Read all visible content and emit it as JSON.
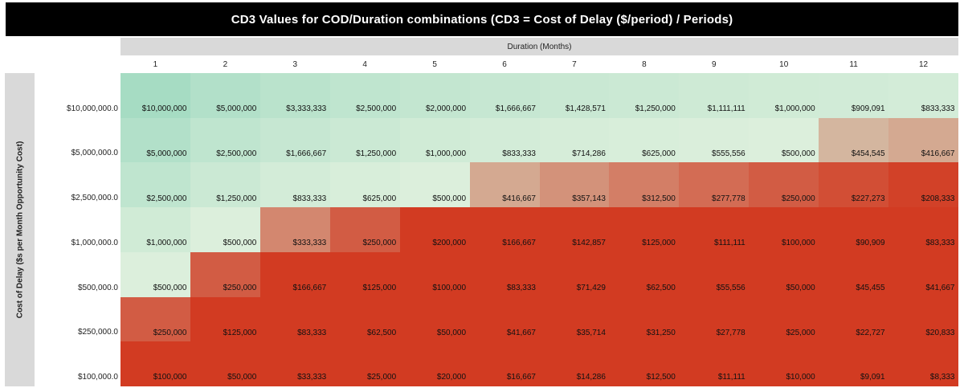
{
  "chart_data": {
    "type": "heatmap",
    "title": "CD3 Values for COD/Duration combinations (CD3 = Cost of Delay ($/period) / Periods)",
    "xlabel": "Duration (Months)",
    "ylabel": "Cost of Delay ($s per Month Opportunity Cost)",
    "columns": [
      "1",
      "2",
      "3",
      "4",
      "5",
      "6",
      "7",
      "8",
      "9",
      "10",
      "11",
      "12"
    ],
    "rows": [
      {
        "label": "$10,000,000.0",
        "cells": [
          "$10,000,000",
          "$5,000,000",
          "$3,333,333",
          "$2,500,000",
          "$2,000,000",
          "$1,666,667",
          "$1,428,571",
          "$1,250,000",
          "$1,111,111",
          "$1,000,000",
          "$909,091",
          "$833,333"
        ],
        "values": [
          10000000,
          5000000,
          3333333,
          2500000,
          2000000,
          1666667,
          1428571,
          1250000,
          1111111,
          1000000,
          909091,
          833333
        ]
      },
      {
        "label": "$5,000,000.0",
        "cells": [
          "$5,000,000",
          "$2,500,000",
          "$1,666,667",
          "$1,250,000",
          "$1,000,000",
          "$833,333",
          "$714,286",
          "$625,000",
          "$555,556",
          "$500,000",
          "$454,545",
          "$416,667"
        ],
        "values": [
          5000000,
          2500000,
          1666667,
          1250000,
          1000000,
          833333,
          714286,
          625000,
          555556,
          500000,
          454545,
          416667
        ]
      },
      {
        "label": "$2,500,000.0",
        "cells": [
          "$2,500,000",
          "$1,250,000",
          "$833,333",
          "$625,000",
          "$500,000",
          "$416,667",
          "$357,143",
          "$312,500",
          "$277,778",
          "$250,000",
          "$227,273",
          "$208,333"
        ],
        "values": [
          2500000,
          1250000,
          833333,
          625000,
          500000,
          416667,
          357143,
          312500,
          277778,
          250000,
          227273,
          208333
        ]
      },
      {
        "label": "$1,000,000.0",
        "cells": [
          "$1,000,000",
          "$500,000",
          "$333,333",
          "$250,000",
          "$200,000",
          "$166,667",
          "$142,857",
          "$125,000",
          "$111,111",
          "$100,000",
          "$90,909",
          "$83,333"
        ],
        "values": [
          1000000,
          500000,
          333333,
          250000,
          200000,
          166667,
          142857,
          125000,
          111111,
          100000,
          90909,
          83333
        ]
      },
      {
        "label": "$500,000.0",
        "cells": [
          "$500,000",
          "$250,000",
          "$166,667",
          "$125,000",
          "$100,000",
          "$83,333",
          "$71,429",
          "$62,500",
          "$55,556",
          "$50,000",
          "$45,455",
          "$41,667"
        ],
        "values": [
          500000,
          250000,
          166667,
          125000,
          100000,
          83333,
          71429,
          62500,
          55556,
          50000,
          45455,
          41667
        ]
      },
      {
        "label": "$250,000.0",
        "cells": [
          "$250,000",
          "$125,000",
          "$83,333",
          "$62,500",
          "$50,000",
          "$41,667",
          "$35,714",
          "$31,250",
          "$27,778",
          "$25,000",
          "$22,727",
          "$20,833"
        ],
        "values": [
          250000,
          125000,
          83333,
          62500,
          50000,
          41667,
          35714,
          31250,
          27778,
          25000,
          22727,
          20833
        ]
      },
      {
        "label": "$100,000.0",
        "cells": [
          "$100,000",
          "$50,000",
          "$33,333",
          "$25,000",
          "$20,000",
          "$16,667",
          "$14,286",
          "$12,500",
          "$11,111",
          "$10,000",
          "$9,091",
          "$8,333"
        ],
        "values": [
          100000,
          50000,
          33333,
          25000,
          20000,
          16667,
          14286,
          12500,
          11111,
          10000,
          9091,
          8333
        ]
      }
    ],
    "color_scale": {
      "low": "#d23b22",
      "mid": "#d4c4ad",
      "high": "#a6dcc3",
      "pale": "#dcefdc"
    }
  }
}
